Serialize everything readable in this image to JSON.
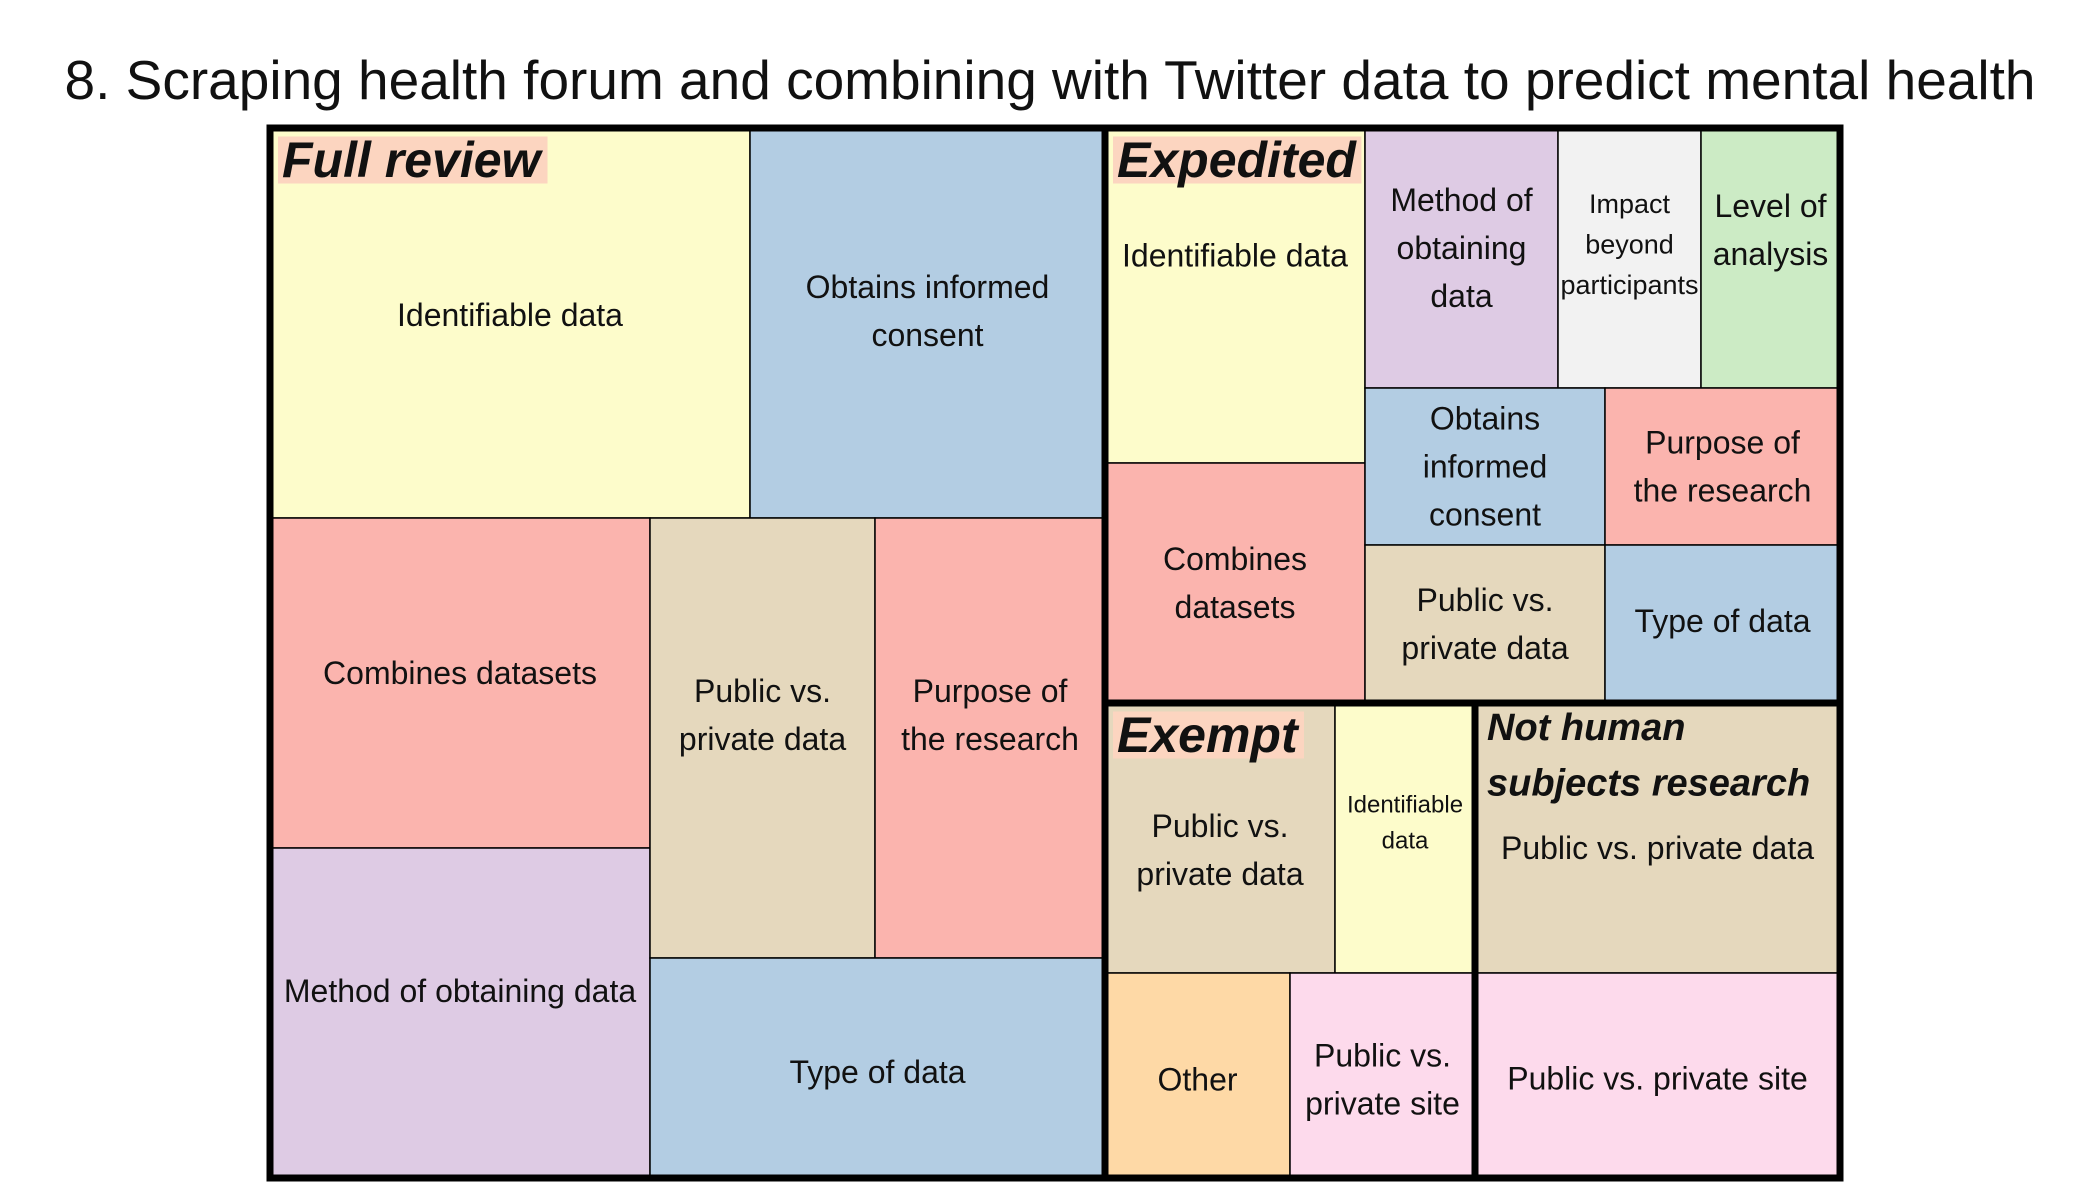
{
  "title": "8. Scraping health forum and combining with Twitter data to predict mental health",
  "colors": {
    "Identifiable data": "#fdfccb",
    "Obtains informed consent": "#b3cde3",
    "Type of data": "#b3cde3",
    "Combines datasets": "#fbb4ae",
    "Purpose of the research": "#fbb4ae",
    "Public vs. private data": "#e5d8bd",
    "Method of obtaining data": "#decbe4",
    "Impact beyond participants": "#f2f2f2",
    "Level of analysis": "#ccebc5",
    "Other": "#fed9a6",
    "Public vs. private site": "#fddaec",
    "label_highlight": "#fcd5c0",
    "border": "#000000"
  },
  "chart_data": {
    "type": "treemap",
    "title": "8. Scraping health forum and combining with Twitter data to predict mental health",
    "groups": [
      {
        "name": "Full review",
        "items": [
          {
            "label": "Identifiable data",
            "category": "Identifiable data",
            "value": 103
          },
          {
            "label": "Obtains informed consent",
            "category": "Obtains informed consent",
            "value": 75
          },
          {
            "label": "Combines datasets",
            "category": "Combines datasets",
            "value": 69
          },
          {
            "label": "Method of obtaining data",
            "category": "Method of obtaining data",
            "value": 69
          },
          {
            "label": "Public vs. private data",
            "category": "Public vs. private data",
            "value": 55
          },
          {
            "label": "Purpose of the research",
            "category": "Purpose of the research",
            "value": 54
          },
          {
            "label": "Type of data",
            "category": "Type of data",
            "value": 54
          }
        ]
      },
      {
        "name": "Expedited",
        "items": [
          {
            "label": "Identifiable data",
            "category": "Identifiable data",
            "value": 48
          },
          {
            "label": "Combines datasets",
            "category": "Combines datasets",
            "value": 34
          },
          {
            "label": "Method of obtaining data",
            "category": "Method of obtaining data",
            "value": 27
          },
          {
            "label": "Impact beyond participants",
            "category": "Impact beyond participants",
            "value": 20
          },
          {
            "label": "Level of analysis",
            "category": "Level of analysis",
            "value": 20
          },
          {
            "label": "Obtains informed consent",
            "category": "Obtains informed consent",
            "value": 21
          },
          {
            "label": "Purpose of the research",
            "category": "Purpose of the research",
            "value": 21
          },
          {
            "label": "Public vs. private data",
            "category": "Public vs. private data",
            "value": 21
          },
          {
            "label": "Type of data",
            "category": "Type of data",
            "value": 21
          }
        ]
      },
      {
        "name": "Exempt",
        "items": [
          {
            "label": "Public vs. private data",
            "category": "Public vs. private data",
            "value": 34
          },
          {
            "label": "Identifiable data",
            "category": "Identifiable data",
            "value": 20
          },
          {
            "label": "Other",
            "category": "Other",
            "value": 19
          },
          {
            "label": "Public vs. private site",
            "category": "Public vs. private site",
            "value": 19
          }
        ]
      },
      {
        "name": "Not human subjects research",
        "items": [
          {
            "label": "Public vs. private data",
            "category": "Public vs. private data",
            "value": 36
          },
          {
            "label": "Public vs. private site",
            "category": "Public vs. private site",
            "value": 27
          }
        ]
      }
    ]
  }
}
